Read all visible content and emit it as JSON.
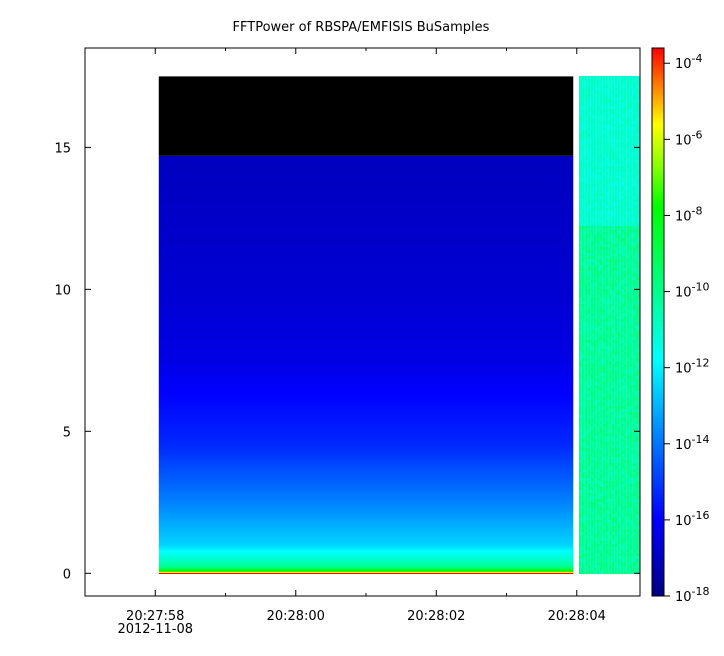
{
  "chart_data": {
    "type": "heatmap",
    "title": "FFTPower of RBSPA/EMFISIS  BuSamples",
    "xlabel": "",
    "ylabel": "",
    "x_tick_labels": [
      {
        "time": "20:27:58",
        "sublabel": "2012-11-08"
      },
      {
        "time": "20:28:00",
        "sublabel": ""
      },
      {
        "time": "20:28:02",
        "sublabel": ""
      },
      {
        "time": "20:28:04",
        "sublabel": ""
      }
    ],
    "x_range_seconds": [
      -1.0,
      6.9
    ],
    "x_major_ticks_seconds": [
      0,
      2,
      4,
      6
    ],
    "x_minor_ticks_seconds": [
      1,
      3,
      5
    ],
    "y_range": [
      -0.8,
      18.5
    ],
    "y_ticks": [
      0,
      5,
      10,
      15
    ],
    "colorbar": {
      "scale": "log",
      "range_exponent": [
        -18,
        -3.6
      ],
      "tick_exponents": [
        -4,
        -6,
        -8,
        -10,
        -12,
        -14,
        -16,
        -18
      ],
      "tick_base": "10"
    },
    "spectrogram_blocks": [
      {
        "x_start_s": 0.05,
        "x_end_s": 5.95,
        "y_top": 17.5,
        "data_top": 14.7,
        "profile": [
          {
            "y": 0.0,
            "log_power": -3.6
          },
          {
            "y": 0.06,
            "log_power": -7.5
          },
          {
            "y": 0.22,
            "log_power": -10.0
          },
          {
            "y": 0.5,
            "log_power": -11.0
          },
          {
            "y": 1.0,
            "log_power": -12.5
          },
          {
            "y": 2.5,
            "log_power": -13.8
          },
          {
            "y": 4.5,
            "log_power": -15.3
          },
          {
            "y": 7.5,
            "log_power": -16.4
          },
          {
            "y": 10.0,
            "log_power": -16.7
          },
          {
            "y": 14.7,
            "log_power": -17.0
          }
        ]
      },
      {
        "x_start_s": 6.03,
        "x_end_s": 7.05,
        "y_top": 17.5,
        "noise_low": [
          -10.6,
          -9.8
        ],
        "noise_high": [
          -11.3,
          -10.8
        ],
        "noise_boundary_y": 12.3
      }
    ]
  }
}
